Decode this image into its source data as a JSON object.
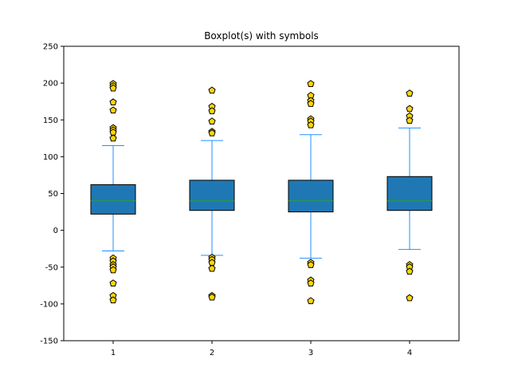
{
  "chart_data": {
    "type": "boxplot",
    "title": "Boxplot(s) with symbols",
    "xlabel": "",
    "ylabel": "",
    "ylim": [
      -150,
      250
    ],
    "yticks": [
      -150,
      -100,
      -50,
      0,
      50,
      100,
      150,
      200,
      250
    ],
    "categories": [
      "1",
      "2",
      "3",
      "4"
    ],
    "boxes": [
      {
        "label": "1",
        "whisker_low": -28,
        "q1": 22,
        "median": 40,
        "q3": 62,
        "whisker_high": 115,
        "fliers": [
          199,
          196,
          193,
          174,
          163,
          139,
          136,
          133,
          125,
          -38,
          -42,
          -47,
          -50,
          -54,
          -72,
          -89,
          -95
        ]
      },
      {
        "label": "2",
        "whisker_low": -34,
        "q1": 27,
        "median": 40,
        "q3": 68,
        "whisker_high": 122,
        "fliers": [
          190,
          168,
          162,
          148,
          134,
          132,
          -37,
          -40,
          -44,
          -52,
          -89,
          -91
        ]
      },
      {
        "label": "3",
        "whisker_low": -38,
        "q1": 25,
        "median": 40,
        "q3": 68,
        "whisker_high": 130,
        "fliers": [
          199,
          183,
          176,
          172,
          151,
          148,
          143,
          -44,
          -47,
          -68,
          -72,
          -96
        ]
      },
      {
        "label": "4",
        "whisker_low": -26,
        "q1": 27,
        "median": 40,
        "q3": 73,
        "whisker_high": 139,
        "fliers": [
          186,
          165,
          155,
          149,
          -47,
          -50,
          -56,
          -92
        ]
      }
    ],
    "colors": {
      "box_fill": "#1f77b4",
      "box_edge": "#000000",
      "whisker": "#1e90ff",
      "median": "#2ca02c",
      "flier_fill": "#ffd700",
      "flier_edge": "#000000"
    },
    "flier_marker": "pentagon",
    "grid": false
  }
}
